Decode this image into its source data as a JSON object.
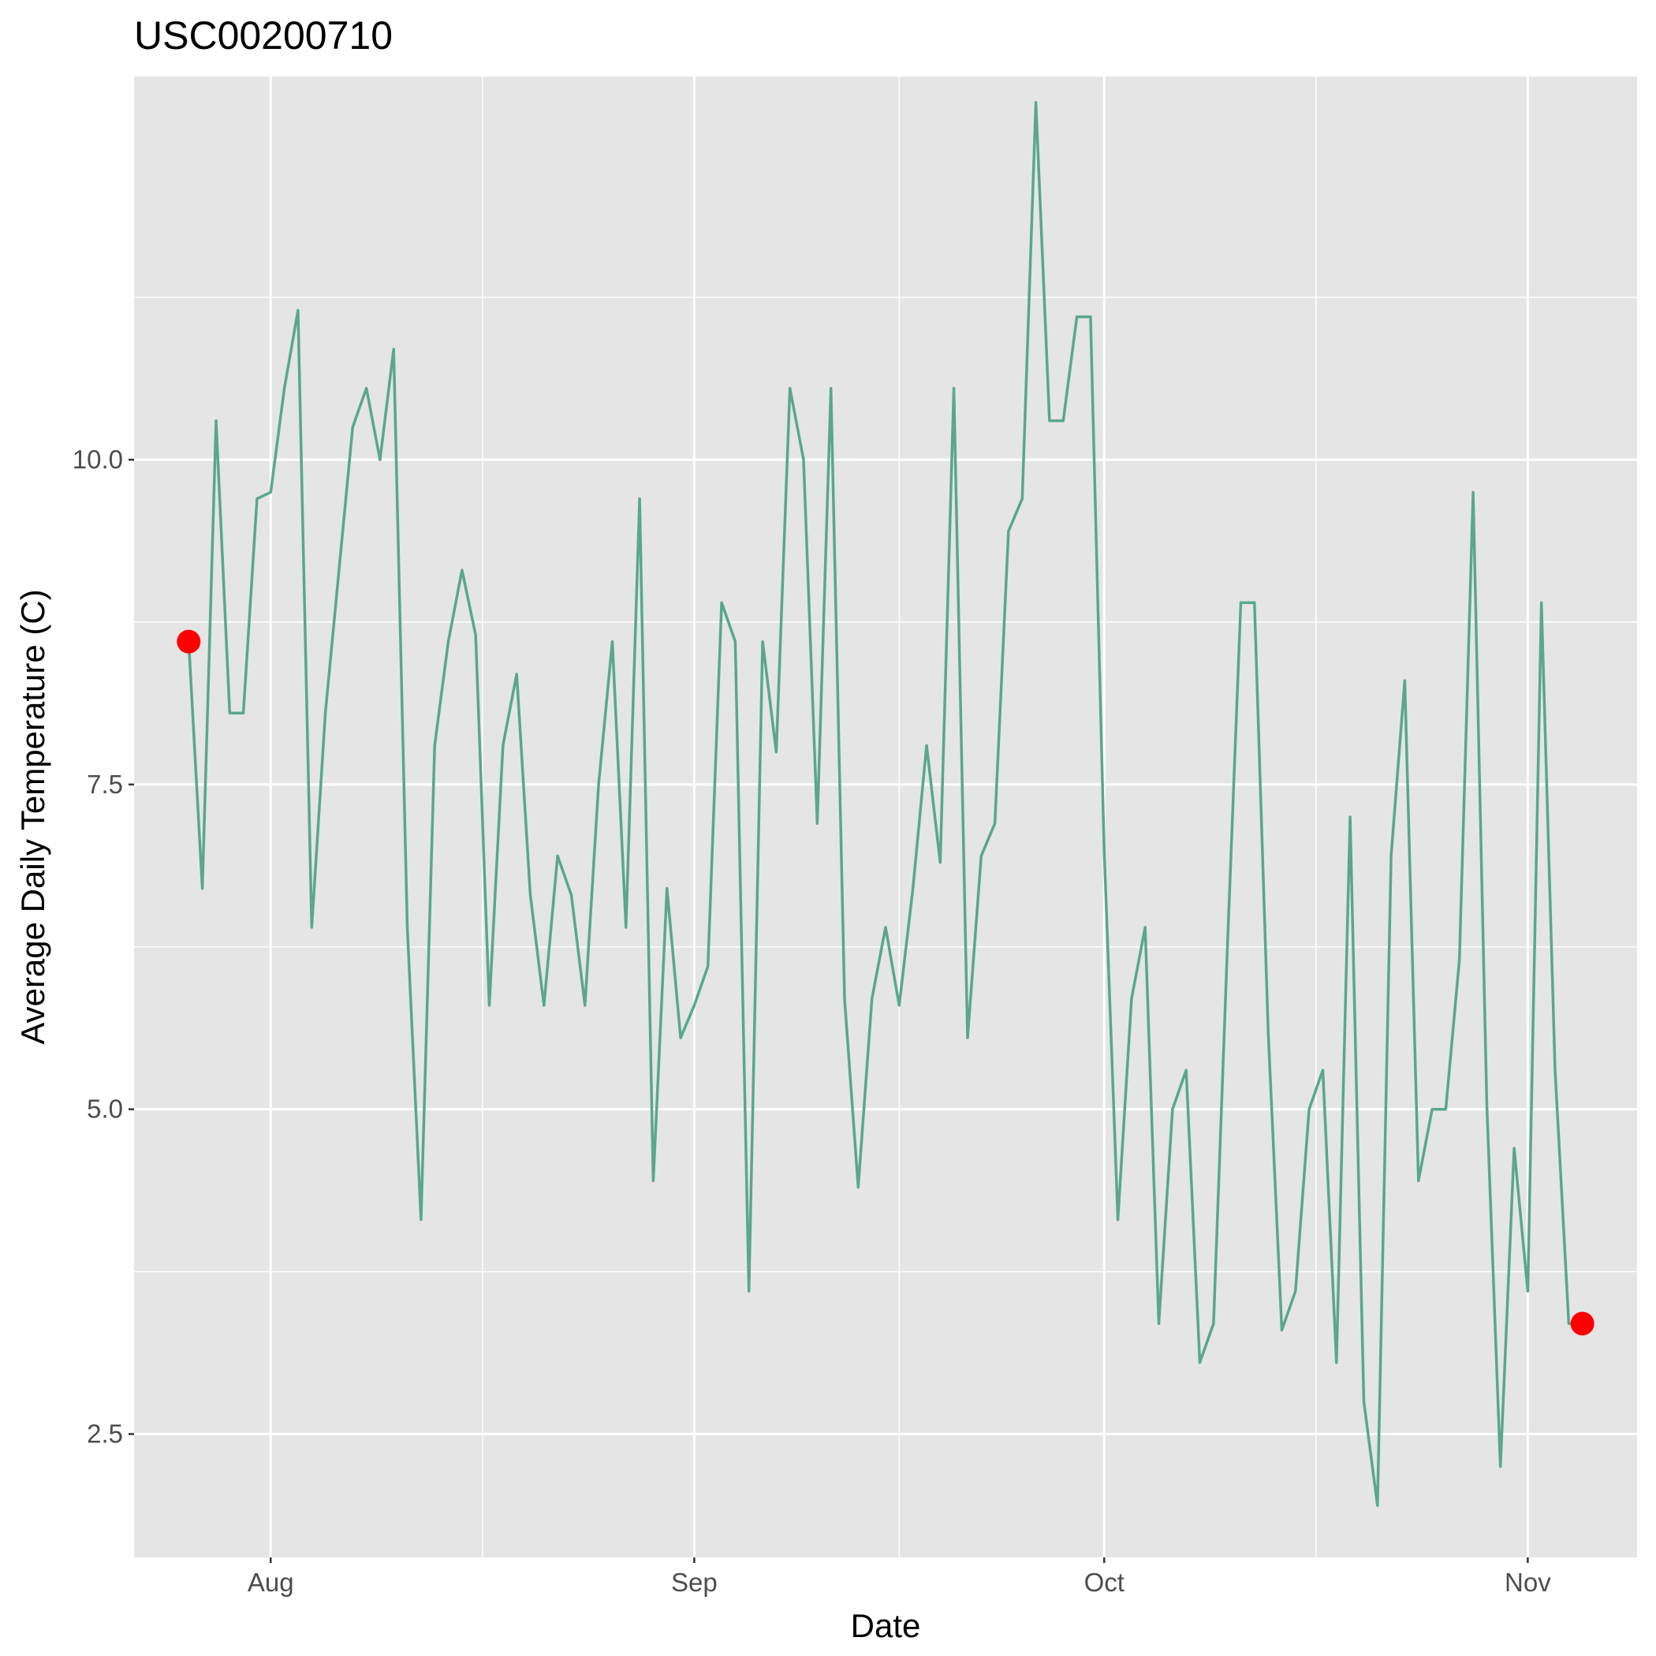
{
  "chart_data": {
    "type": "line",
    "title": "USC00200710",
    "xlabel": "Date",
    "ylabel": "Average Daily Temperature (C)",
    "x_ticks": [
      "Aug",
      "Sep",
      "Oct",
      "Nov"
    ],
    "y_ticks": [
      "2.5",
      "5.0",
      "7.5",
      "10.0"
    ],
    "ylim": [
      1.55,
      12.95
    ],
    "xlim": [
      "2018-07-22",
      "2018-11-09"
    ],
    "grid": true,
    "colors": {
      "panel": "#e5e5e5",
      "grid": "#ffffff",
      "line": "#5aa68f",
      "highlight": "#ff0000"
    },
    "series": [
      {
        "x": [
          "2018-07-26",
          "2018-07-27",
          "2018-07-28",
          "2018-07-29",
          "2018-07-30",
          "2018-07-31",
          "2018-08-01",
          "2018-08-02",
          "2018-08-03",
          "2018-08-04",
          "2018-08-05",
          "2018-08-06",
          "2018-08-07",
          "2018-08-08",
          "2018-08-09",
          "2018-08-10",
          "2018-08-11",
          "2018-08-12",
          "2018-08-13",
          "2018-08-14",
          "2018-08-15",
          "2018-08-16",
          "2018-08-17",
          "2018-08-18",
          "2018-08-19",
          "2018-08-20",
          "2018-08-21",
          "2018-08-22",
          "2018-08-23",
          "2018-08-24",
          "2018-08-25",
          "2018-08-26",
          "2018-08-27",
          "2018-08-28",
          "2018-08-29",
          "2018-08-30",
          "2018-08-31",
          "2018-09-01",
          "2018-09-02",
          "2018-09-03",
          "2018-09-04",
          "2018-09-05",
          "2018-09-06",
          "2018-09-07",
          "2018-09-08",
          "2018-09-09",
          "2018-09-10",
          "2018-09-11",
          "2018-09-12",
          "2018-09-13",
          "2018-09-14",
          "2018-09-15",
          "2018-09-16",
          "2018-09-17",
          "2018-09-18",
          "2018-09-19",
          "2018-09-20",
          "2018-09-21",
          "2018-09-22",
          "2018-09-23",
          "2018-09-24",
          "2018-09-25",
          "2018-09-26",
          "2018-09-27",
          "2018-09-28",
          "2018-09-29",
          "2018-09-30",
          "2018-10-01",
          "2018-10-02",
          "2018-10-03",
          "2018-10-04",
          "2018-10-05",
          "2018-10-06",
          "2018-10-07",
          "2018-10-08",
          "2018-10-09",
          "2018-10-10",
          "2018-10-11",
          "2018-10-12",
          "2018-10-13",
          "2018-10-14",
          "2018-10-15",
          "2018-10-16",
          "2018-10-17",
          "2018-10-18",
          "2018-10-19",
          "2018-10-20",
          "2018-10-21",
          "2018-10-22",
          "2018-10-23",
          "2018-10-24",
          "2018-10-25",
          "2018-10-26",
          "2018-10-27",
          "2018-10-28",
          "2018-10-29",
          "2018-10-30",
          "2018-10-31",
          "2018-11-01",
          "2018-11-02",
          "2018-11-03",
          "2018-11-04",
          "2018-11-05"
        ],
        "values": [
          8.6,
          6.7,
          10.3,
          8.05,
          8.05,
          9.7,
          9.75,
          10.55,
          11.15,
          6.4,
          8.05,
          9.15,
          10.25,
          10.55,
          10.0,
          10.85,
          6.4,
          4.15,
          7.8,
          8.6,
          9.15,
          8.65,
          5.8,
          7.8,
          8.35,
          6.65,
          5.8,
          6.95,
          6.65,
          5.8,
          7.5,
          8.6,
          6.4,
          9.7,
          4.45,
          6.7,
          5.55,
          5.8,
          6.1,
          8.9,
          8.6,
          3.6,
          8.6,
          7.75,
          10.55,
          10.0,
          7.2,
          10.55,
          5.85,
          4.4,
          5.85,
          6.4,
          5.8,
          6.7,
          7.8,
          6.9,
          10.55,
          5.55,
          6.95,
          7.2,
          9.45,
          9.7,
          12.75,
          10.3,
          10.3,
          11.1,
          11.1,
          7.0,
          4.15,
          5.85,
          6.4,
          3.35,
          5.0,
          5.3,
          3.05,
          3.35,
          6.2,
          8.9,
          8.9,
          5.6,
          3.3,
          3.6,
          5.0,
          5.3,
          3.05,
          7.25,
          2.75,
          1.95,
          6.95,
          8.3,
          4.45,
          5.0,
          5.0,
          6.15,
          9.75,
          5.05,
          2.25,
          4.7,
          3.6,
          8.9,
          5.3,
          3.35,
          3.35
        ]
      }
    ],
    "highlight_points": [
      {
        "x": "2018-07-26",
        "y": 8.6
      },
      {
        "x": "2018-11-05",
        "y": 3.35
      }
    ]
  }
}
